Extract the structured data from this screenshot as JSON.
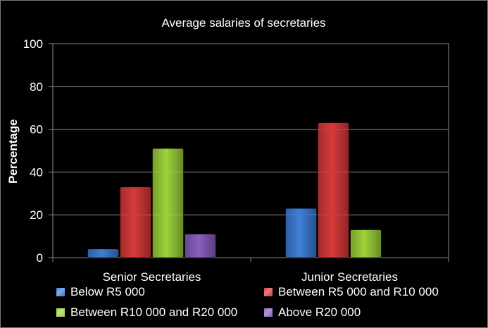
{
  "chart_data": {
    "type": "bar",
    "title": "Average salaries of secretaries",
    "xlabel": "",
    "ylabel": "Percentage",
    "ylim": [
      0,
      100
    ],
    "yticks": [
      0,
      20,
      40,
      60,
      80,
      100
    ],
    "grid": true,
    "legend_position": "bottom",
    "categories": [
      "Senior Secretaries",
      "Junior Secretaries"
    ],
    "series": [
      {
        "name": "Below R5 000",
        "color": "#3f7fd8",
        "values": [
          4,
          23
        ]
      },
      {
        "name": "Between R5 000 and R10 000",
        "color": "#d83a3a",
        "values": [
          33,
          63
        ]
      },
      {
        "name": "Between R10 000 and R20 000",
        "color": "#9ed33a",
        "values": [
          51,
          13
        ]
      },
      {
        "name": "Above R20 000",
        "color": "#8860c0",
        "values": [
          11,
          0
        ]
      }
    ]
  }
}
